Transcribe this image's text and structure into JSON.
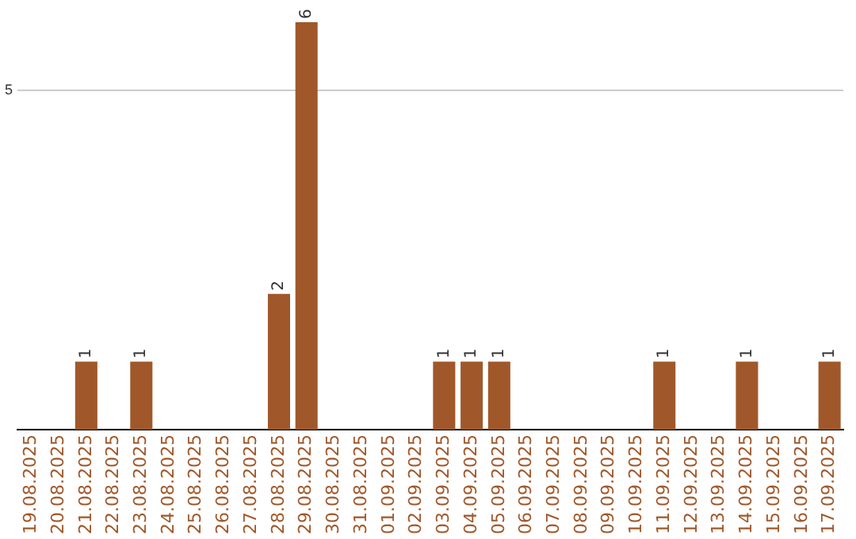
{
  "chart_data": {
    "type": "bar",
    "categories": [
      "19.08.2025",
      "20.08.2025",
      "21.08.2025",
      "22.08.2025",
      "23.08.2025",
      "24.08.2025",
      "25.08.2025",
      "26.08.2025",
      "27.08.2025",
      "28.08.2025",
      "29.08.2025",
      "30.08.2025",
      "31.08.2025",
      "01.09.2025",
      "02.09.2025",
      "03.09.2025",
      "04.09.2025",
      "05.09.2025",
      "06.09.2025",
      "07.09.2025",
      "08.09.2025",
      "09.09.2025",
      "10.09.2025",
      "11.09.2025",
      "12.09.2025",
      "13.09.2025",
      "14.09.2025",
      "15.09.2025",
      "16.09.2025",
      "17.09.2025"
    ],
    "values": [
      0,
      0,
      1,
      0,
      1,
      0,
      0,
      0,
      0,
      2,
      6,
      0,
      0,
      0,
      0,
      1,
      1,
      1,
      0,
      0,
      0,
      0,
      0,
      1,
      0,
      0,
      1,
      0,
      0,
      1
    ],
    "value_labels": [
      null,
      null,
      "1",
      null,
      "1",
      null,
      null,
      null,
      null,
      "2",
      "6",
      null,
      null,
      null,
      null,
      "1",
      "1",
      "1",
      null,
      null,
      null,
      null,
      null,
      "1",
      null,
      null,
      "1",
      null,
      null,
      "1"
    ],
    "color": "#a0582a",
    "ylim": [
      0,
      6
    ],
    "yticks": [
      5
    ],
    "grid": "y",
    "legend": false
  }
}
